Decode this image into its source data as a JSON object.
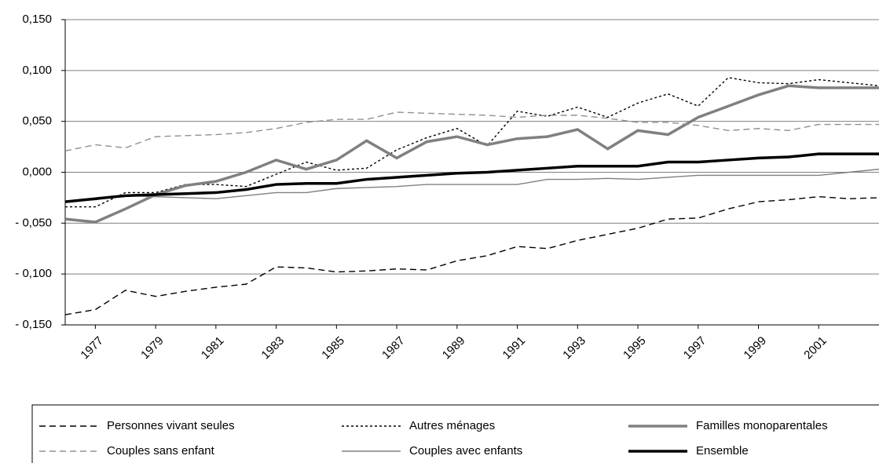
{
  "chart_data": {
    "type": "line",
    "x": [
      1976,
      1977,
      1978,
      1979,
      1980,
      1981,
      1982,
      1983,
      1984,
      1985,
      1986,
      1987,
      1988,
      1989,
      1990,
      1991,
      1992,
      1993,
      1994,
      1995,
      1996,
      1997,
      1998,
      1999,
      2000,
      2001,
      2002,
      2003
    ],
    "xlim": [
      1976,
      2003
    ],
    "xticks": [
      1977,
      1979,
      1981,
      1983,
      1985,
      1987,
      1989,
      1991,
      1993,
      1995,
      1997,
      1999,
      2001
    ],
    "ylim": [
      -0.15,
      0.15
    ],
    "yticks": [
      {
        "value": -0.15,
        "label": "- 0,150"
      },
      {
        "value": -0.1,
        "label": "- 0,100"
      },
      {
        "value": -0.05,
        "label": "- 0,050"
      },
      {
        "value": 0,
        "label": "0,000"
      },
      {
        "value": 0.05,
        "label": "0,050"
      },
      {
        "value": 0.1,
        "label": "0,100"
      },
      {
        "value": 0.15,
        "label": "0,150"
      }
    ],
    "grid": true,
    "series": [
      {
        "name": "Personnes vivant seules",
        "color": "#000000",
        "style": "dashed",
        "weight": "thin",
        "values": [
          -0.14,
          -0.135,
          -0.116,
          -0.122,
          -0.117,
          -0.113,
          -0.11,
          -0.093,
          -0.094,
          -0.098,
          -0.097,
          -0.095,
          -0.096,
          -0.087,
          -0.082,
          -0.073,
          -0.075,
          -0.067,
          -0.061,
          -0.055,
          -0.046,
          -0.045,
          -0.036,
          -0.029,
          -0.027,
          -0.024,
          -0.026,
          -0.025
        ]
      },
      {
        "name": "Autres ménages",
        "color": "#000000",
        "style": "dotted",
        "weight": "thin",
        "values": [
          -0.034,
          -0.034,
          -0.02,
          -0.02,
          -0.012,
          -0.012,
          -0.014,
          -0.002,
          0.01,
          0.002,
          0.004,
          0.022,
          0.034,
          0.043,
          0.026,
          0.06,
          0.055,
          0.064,
          0.054,
          0.068,
          0.077,
          0.065,
          0.093,
          0.088,
          0.087,
          0.091,
          0.088,
          0.085
        ]
      },
      {
        "name": "Familles monoparentales",
        "color": "#808080",
        "style": "solid",
        "weight": "thick",
        "values": [
          -0.046,
          -0.049,
          -0.036,
          -0.022,
          -0.013,
          -0.009,
          0.0,
          0.012,
          0.003,
          0.012,
          0.031,
          0.014,
          0.03,
          0.035,
          0.027,
          0.033,
          0.035,
          0.042,
          0.023,
          0.041,
          0.037,
          0.054,
          0.065,
          0.076,
          0.085,
          0.083,
          0.083,
          0.083
        ]
      },
      {
        "name": "Couples sans enfant",
        "color": "#909090",
        "style": "dashed",
        "weight": "thin",
        "values": [
          0.021,
          0.027,
          0.024,
          0.035,
          0.036,
          0.037,
          0.039,
          0.043,
          0.049,
          0.052,
          0.052,
          0.059,
          0.058,
          0.057,
          0.056,
          0.054,
          0.056,
          0.056,
          0.053,
          0.049,
          0.049,
          0.046,
          0.041,
          0.043,
          0.041,
          0.047,
          0.047,
          0.047
        ]
      },
      {
        "name": "Couples avec enfants",
        "color": "#808080",
        "style": "solid",
        "weight": "thin",
        "values": [
          -0.028,
          -0.027,
          -0.023,
          -0.024,
          -0.025,
          -0.026,
          -0.023,
          -0.02,
          -0.02,
          -0.016,
          -0.015,
          -0.014,
          -0.012,
          -0.012,
          -0.012,
          -0.012,
          -0.007,
          -0.007,
          -0.006,
          -0.007,
          -0.005,
          -0.003,
          -0.003,
          -0.003,
          -0.003,
          -0.003,
          0.0,
          0.003
        ]
      },
      {
        "name": "Ensemble",
        "color": "#000000",
        "style": "solid",
        "weight": "thick",
        "values": [
          -0.029,
          -0.026,
          -0.023,
          -0.022,
          -0.021,
          -0.02,
          -0.017,
          -0.012,
          -0.011,
          -0.011,
          -0.007,
          -0.005,
          -0.003,
          -0.001,
          0.0,
          0.002,
          0.004,
          0.006,
          0.006,
          0.006,
          0.01,
          0.01,
          0.012,
          0.014,
          0.015,
          0.018,
          0.018,
          0.018
        ]
      }
    ]
  }
}
